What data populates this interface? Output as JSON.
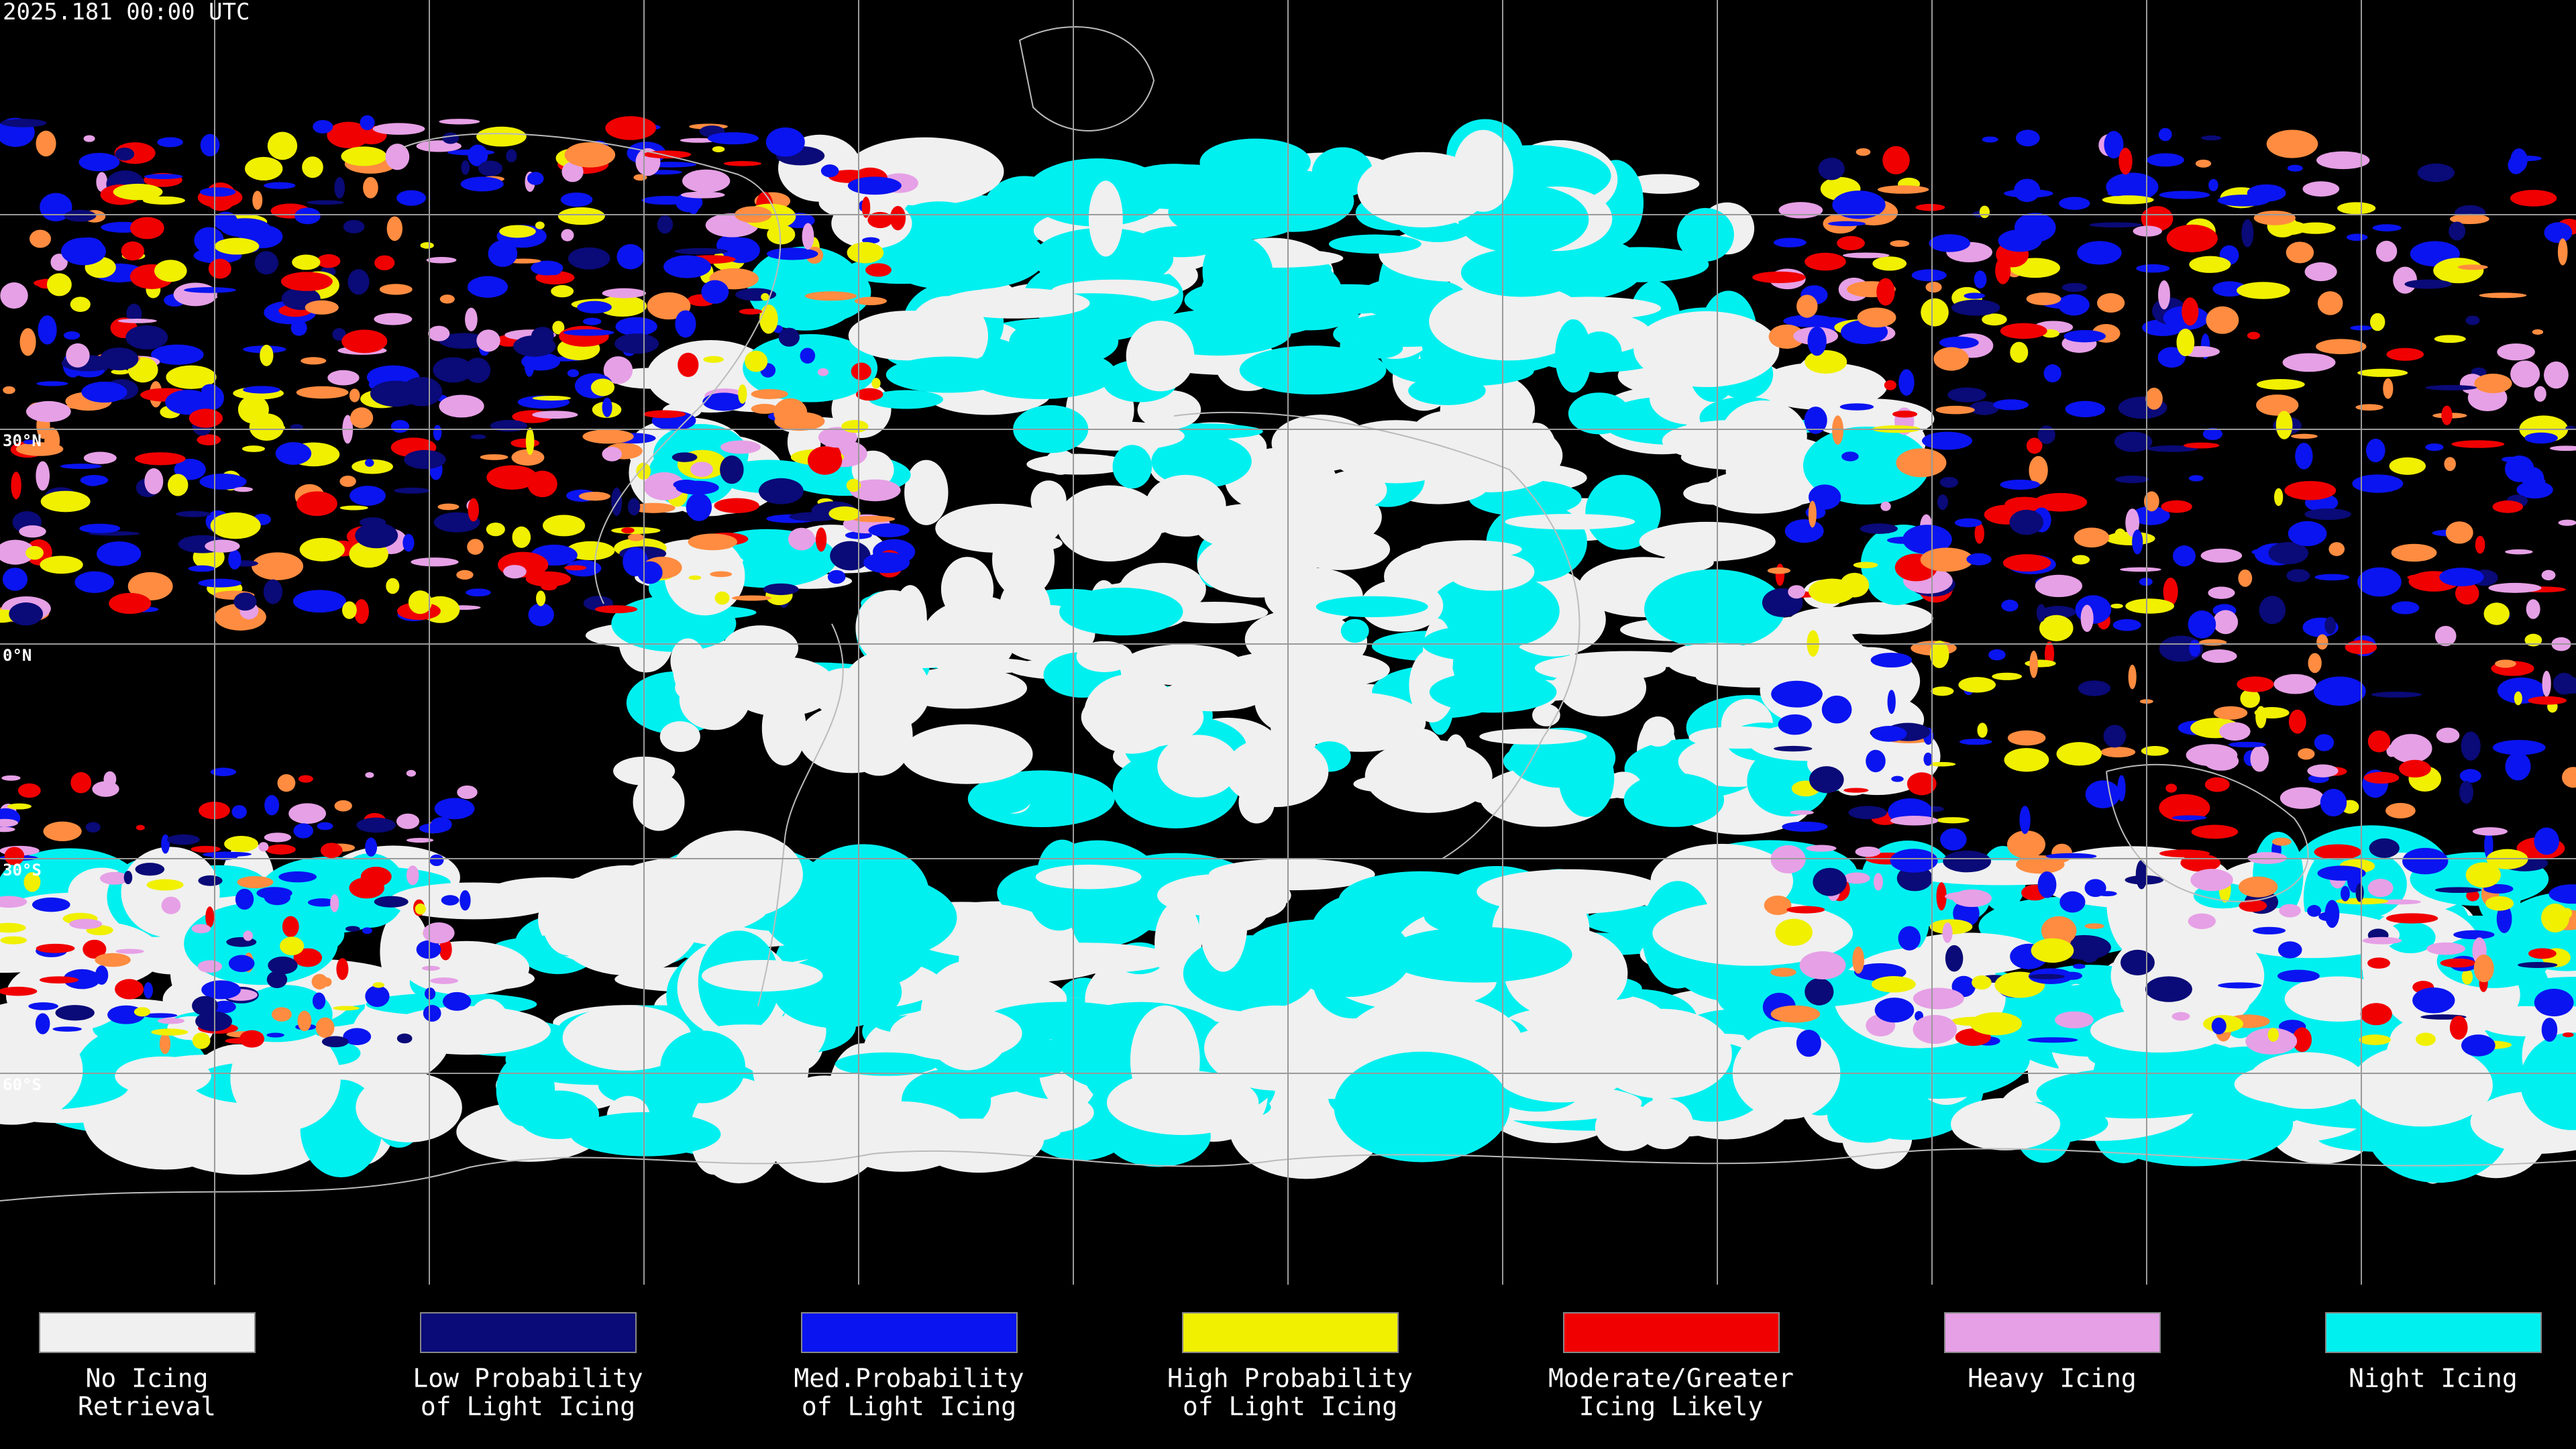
{
  "header": {
    "timestamp": "2025.181 00:00 UTC"
  },
  "map": {
    "latitude_labels": [
      "30°N",
      "0°N",
      "30°S",
      "60°S"
    ]
  },
  "legend": [
    {
      "color": "#f0f0f0",
      "lines": [
        "No Icing",
        "Retrieval"
      ]
    },
    {
      "color": "#0a0a78",
      "lines": [
        "Low Probability",
        "of Light Icing"
      ]
    },
    {
      "color": "#0a14f0",
      "lines": [
        "Med.Probability",
        "of Light Icing"
      ]
    },
    {
      "color": "#f0f000",
      "lines": [
        "High Probability",
        "of Light Icing"
      ]
    },
    {
      "color": "#f00000",
      "lines": [
        "Moderate/Greater",
        "Icing Likely"
      ]
    },
    {
      "color": "#e6a0e6",
      "lines": [
        "Heavy Icing"
      ]
    },
    {
      "color": "#00f0f0",
      "lines": [
        "Night Icing"
      ]
    }
  ]
}
